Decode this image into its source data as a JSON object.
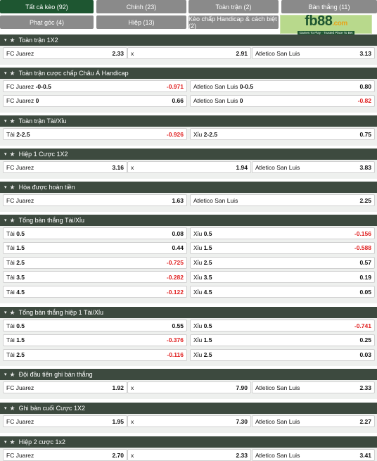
{
  "tabs": [
    {
      "label": "Tất cả kèo (92)",
      "active": true
    },
    {
      "label": "Chính (23)"
    },
    {
      "label": "Toàn trận (2)"
    },
    {
      "label": "Bàn thắng (11)"
    },
    {
      "label": "Phạt góc (4)"
    },
    {
      "label": "Hiệp (13)"
    },
    {
      "label": "Kèo chấp Handicap & cách biệt (2)"
    }
  ],
  "logo": {
    "main_a": "fb88",
    "main_b": ".com",
    "tagline": "Games To Play · Trusted Place To Bet"
  },
  "sections": [
    {
      "title": "Toàn trận 1X2",
      "layout": "three",
      "rows": [
        [
          {
            "label": "FC Juarez",
            "value": "2.33"
          },
          {
            "label": "x",
            "value": "2.91"
          },
          {
            "label": "Atletico San Luis",
            "value": "3.13"
          }
        ]
      ]
    },
    {
      "title": "Toàn trận cược chấp Châu Á Handicap",
      "layout": "two",
      "rows": [
        [
          {
            "label": "FC Juarez",
            "line": "-0-0.5",
            "value": "-0.971"
          },
          {
            "label": "Atletico San Luis",
            "line": "0-0.5",
            "value": "0.80"
          }
        ],
        [
          {
            "label": "FC Juarez",
            "line": "0",
            "value": "0.66"
          },
          {
            "label": "Atletico San Luis",
            "line": "0",
            "value": "-0.82"
          }
        ]
      ]
    },
    {
      "title": "Toàn trận Tài/Xỉu",
      "layout": "two",
      "rows": [
        [
          {
            "label": "Tài",
            "line": "2-2.5",
            "value": "-0.926"
          },
          {
            "label": "Xỉu",
            "line": "2-2.5",
            "value": "0.75"
          }
        ]
      ]
    },
    {
      "title": "Hiệp 1 Cược 1X2",
      "layout": "three",
      "rows": [
        [
          {
            "label": "FC Juarez",
            "value": "3.16"
          },
          {
            "label": "x",
            "value": "1.94"
          },
          {
            "label": "Atletico San Luis",
            "value": "3.83"
          }
        ]
      ]
    },
    {
      "title": "Hòa được hoàn tiền",
      "layout": "two",
      "rows": [
        [
          {
            "label": "FC Juarez",
            "value": "1.63"
          },
          {
            "label": "Atletico San Luis",
            "value": "2.25"
          }
        ]
      ]
    },
    {
      "title": "Tổng bàn thắng Tài/Xỉu",
      "layout": "two",
      "rows": [
        [
          {
            "label": "Tài",
            "line": "0.5",
            "value": "0.08"
          },
          {
            "label": "Xỉu",
            "line": "0.5",
            "value": "-0.156"
          }
        ],
        [
          {
            "label": "Tài",
            "line": "1.5",
            "value": "0.44"
          },
          {
            "label": "Xỉu",
            "line": "1.5",
            "value": "-0.588"
          }
        ],
        [
          {
            "label": "Tài",
            "line": "2.5",
            "value": "-0.725"
          },
          {
            "label": "Xỉu",
            "line": "2.5",
            "value": "0.57"
          }
        ],
        [
          {
            "label": "Tài",
            "line": "3.5",
            "value": "-0.282"
          },
          {
            "label": "Xỉu",
            "line": "3.5",
            "value": "0.19"
          }
        ],
        [
          {
            "label": "Tài",
            "line": "4.5",
            "value": "-0.122"
          },
          {
            "label": "Xỉu",
            "line": "4.5",
            "value": "0.05"
          }
        ]
      ]
    },
    {
      "title": "Tổng bàn thắng hiệp 1 Tài/Xỉu",
      "layout": "two",
      "rows": [
        [
          {
            "label": "Tài",
            "line": "0.5",
            "value": "0.55"
          },
          {
            "label": "Xỉu",
            "line": "0.5",
            "value": "-0.741"
          }
        ],
        [
          {
            "label": "Tài",
            "line": "1.5",
            "value": "-0.376"
          },
          {
            "label": "Xỉu",
            "line": "1.5",
            "value": "0.25"
          }
        ],
        [
          {
            "label": "Tài",
            "line": "2.5",
            "value": "-0.116"
          },
          {
            "label": "Xỉu",
            "line": "2.5",
            "value": "0.03"
          }
        ]
      ]
    },
    {
      "title": "Đội đầu tiên ghi bàn thắng",
      "layout": "three",
      "rows": [
        [
          {
            "label": "FC Juarez",
            "value": "1.92"
          },
          {
            "label": "x",
            "value": "7.90"
          },
          {
            "label": "Atletico San Luis",
            "value": "2.33"
          }
        ]
      ]
    },
    {
      "title": "Ghi bàn cuối Cược 1X2",
      "layout": "three",
      "rows": [
        [
          {
            "label": "FC Juarez",
            "value": "1.95"
          },
          {
            "label": "x",
            "value": "7.30"
          },
          {
            "label": "Atletico San Luis",
            "value": "2.27"
          }
        ]
      ]
    },
    {
      "title": "Hiệp 2 cược 1x2",
      "layout": "three",
      "rows": [
        [
          {
            "label": "FC Juarez",
            "value": "2.70"
          },
          {
            "label": "x",
            "value": "2.33"
          },
          {
            "label": "Atletico San Luis",
            "value": "3.41"
          }
        ]
      ]
    }
  ],
  "icons": {
    "collapse": "caret-down-icon",
    "favorite": "star-icon"
  },
  "colors": {
    "active_tab": "#1e5631",
    "tab": "#8a8a8a",
    "header": "#3d4a3f",
    "negative": "#e02020"
  }
}
